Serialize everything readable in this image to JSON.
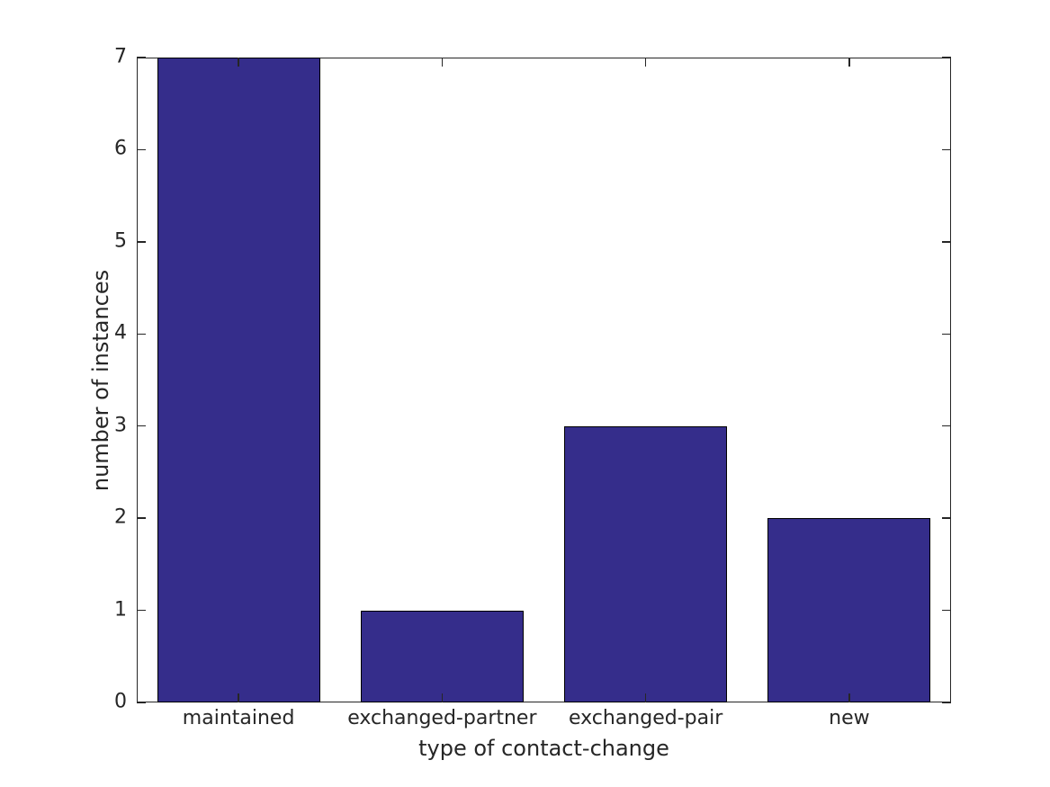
{
  "chart_data": {
    "type": "bar",
    "title": "",
    "xlabel": "type of contact-change",
    "ylabel": "number of instances",
    "categories": [
      "maintained",
      "exchanged-partner",
      "exchanged-pair",
      "new"
    ],
    "values": [
      7,
      1,
      3,
      2
    ],
    "ylim": [
      0,
      7
    ],
    "yticks": [
      "0",
      "1",
      "2",
      "3",
      "4",
      "5",
      "6",
      "7"
    ],
    "bar_width_fraction": 0.8,
    "grid": false,
    "legend": null,
    "colors": {
      "bar_fill": "#352d8b",
      "bar_edge": "#000000",
      "axis": "#262626",
      "text": "#262626",
      "background": "#ffffff"
    }
  }
}
